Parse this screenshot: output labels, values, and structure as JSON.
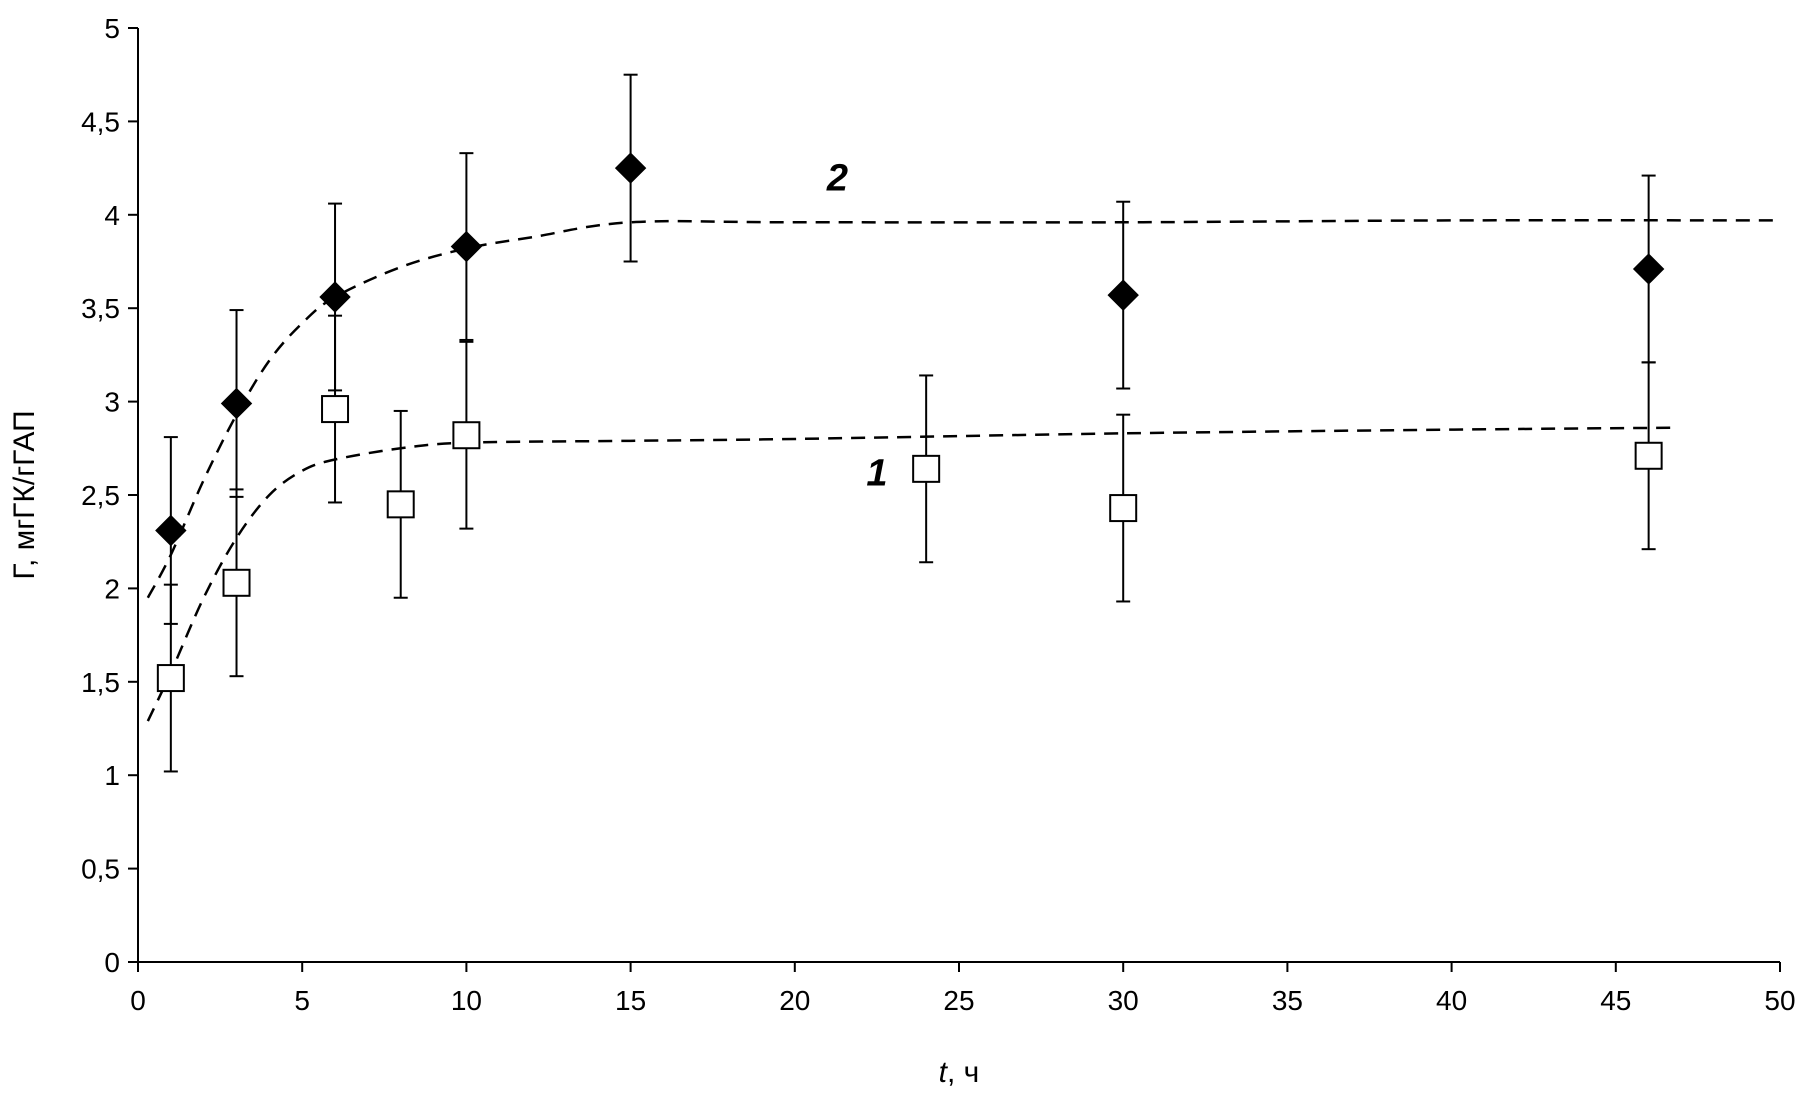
{
  "chart_data": {
    "type": "scatter",
    "xlabel_var": "t",
    "xlabel_unit": ", ч",
    "ylabel": "Г, мгГК/гГАП",
    "xlim": [
      0,
      50
    ],
    "ylim": [
      0,
      5
    ],
    "x_ticks": [
      0,
      5,
      10,
      15,
      20,
      25,
      30,
      35,
      40,
      45,
      50
    ],
    "x_tick_labels": [
      "0",
      "5",
      "10",
      "15",
      "20",
      "25",
      "30",
      "35",
      "40",
      "45",
      "50"
    ],
    "y_ticks": [
      0,
      0.5,
      1,
      1.5,
      2,
      2.5,
      3,
      3.5,
      4,
      4.5,
      5
    ],
    "y_tick_labels": [
      "0",
      "0,5",
      "1",
      "1,5",
      "2",
      "2,5",
      "3",
      "3,5",
      "4",
      "4,5",
      "5"
    ],
    "grid": false,
    "series": [
      {
        "name": "1",
        "marker": "open-square",
        "color": "#000000",
        "x": [
          1,
          3,
          6,
          8,
          10,
          24,
          30,
          46
        ],
        "y": [
          1.52,
          2.03,
          2.96,
          2.45,
          2.82,
          2.64,
          2.43,
          2.71
        ],
        "error": [
          0.5,
          0.5,
          0.5,
          0.5,
          0.5,
          0.5,
          0.5,
          0.5
        ]
      },
      {
        "name": "2",
        "marker": "filled-diamond",
        "color": "#000000",
        "x": [
          1,
          3,
          6,
          10,
          15,
          30,
          46
        ],
        "y": [
          2.31,
          2.99,
          3.56,
          3.83,
          4.25,
          3.57,
          3.71
        ],
        "error": [
          0.5,
          0.5,
          0.5,
          0.5,
          0.5,
          0.5,
          0.5
        ]
      }
    ],
    "fit_curves": [
      {
        "series": "1",
        "style": "dashed",
        "x": [
          0.3,
          1,
          2,
          3,
          4,
          5,
          6,
          8,
          10,
          15,
          20,
          30,
          40,
          46.7
        ],
        "y": [
          1.29,
          1.55,
          1.95,
          2.27,
          2.5,
          2.63,
          2.69,
          2.75,
          2.78,
          2.79,
          2.8,
          2.83,
          2.85,
          2.86
        ]
      },
      {
        "series": "2",
        "style": "dashed",
        "x": [
          0.3,
          1,
          2,
          3,
          4,
          5,
          6,
          8,
          10,
          12,
          15,
          20,
          30,
          40,
          50
        ],
        "y": [
          1.95,
          2.18,
          2.58,
          2.93,
          3.22,
          3.42,
          3.56,
          3.72,
          3.82,
          3.88,
          3.96,
          3.96,
          3.96,
          3.97,
          3.97
        ]
      }
    ],
    "annotations": [
      {
        "text": "1",
        "x": 22.5,
        "y": 2.55
      },
      {
        "text": "2",
        "x": 21.3,
        "y": 4.13
      }
    ]
  }
}
